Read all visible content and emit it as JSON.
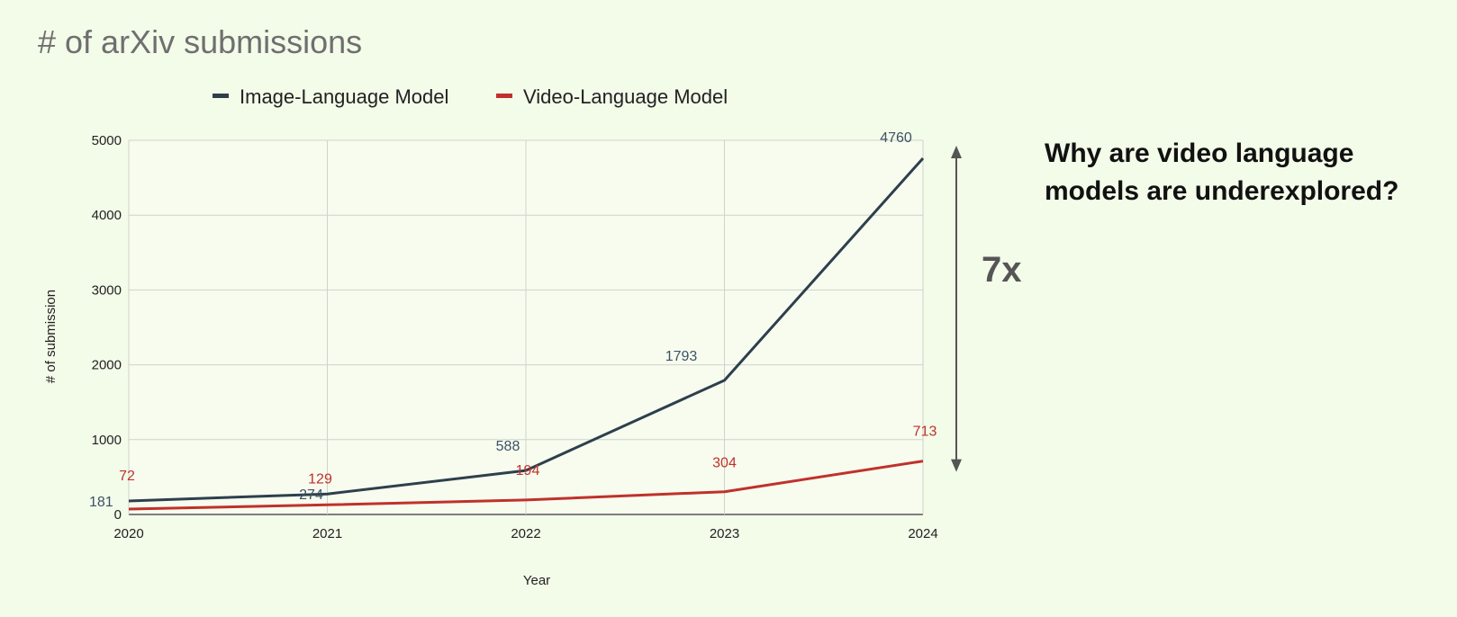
{
  "slide": {
    "title": "# of arXiv submissions",
    "question": "Why are video language models are underexplored?"
  },
  "chart_data": {
    "type": "line",
    "title": "",
    "xlabel": "Year",
    "ylabel": "# of submission",
    "x": [
      "2020",
      "2021",
      "2022",
      "2023",
      "2024"
    ],
    "ylim": [
      0,
      5000
    ],
    "yticks": [
      0,
      1000,
      2000,
      3000,
      4000,
      5000
    ],
    "grid": true,
    "legend_position": "top",
    "series": [
      {
        "name": "Image-Language Model",
        "color": "#2e3f4c",
        "label_color": "#3d5266",
        "values": [
          181,
          274,
          588,
          1793,
          4760
        ]
      },
      {
        "name": "Video-Language Model",
        "color": "#c0312b",
        "label_color": "#c0312b",
        "values": [
          72,
          129,
          194,
          304,
          713
        ]
      }
    ],
    "annotation": {
      "text": "7x",
      "from_value": 4760,
      "to_value": 713,
      "color": "#555555"
    }
  }
}
